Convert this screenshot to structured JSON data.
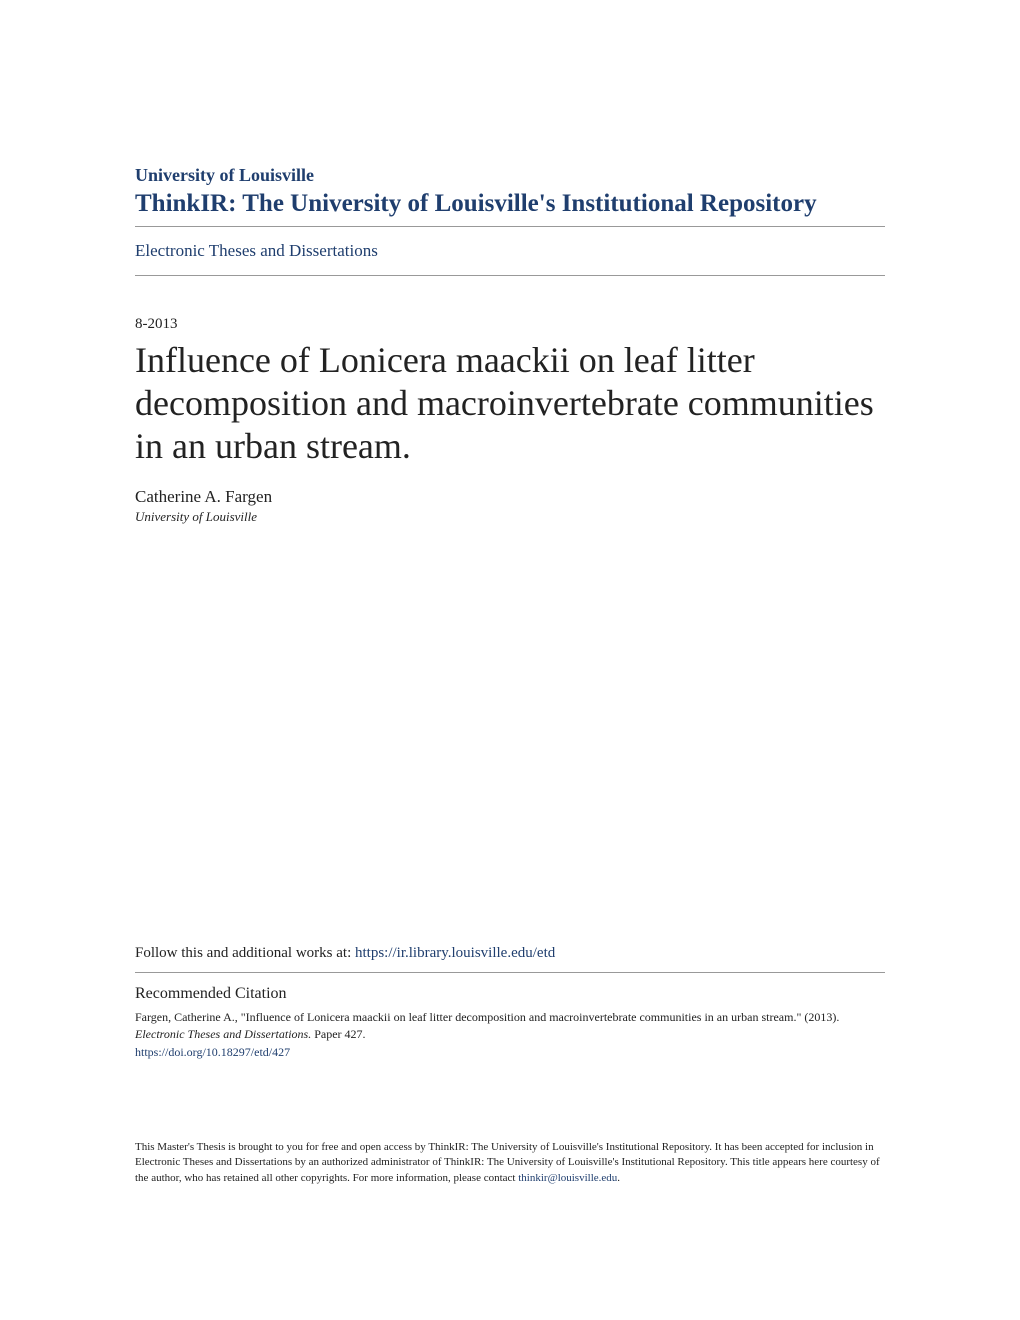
{
  "header": {
    "university": "University of Louisville",
    "repository": "ThinkIR: The University of Louisville's Institutional Repository",
    "collection": "Electronic Theses and Dissertations"
  },
  "metadata": {
    "date": "8-2013",
    "title": "Influence of Lonicera maackii on leaf litter decomposition and macroinvertebrate communities in an urban stream.",
    "author_name": "Catherine A. Fargen",
    "author_affiliation": "University of Louisville"
  },
  "follow": {
    "text": "Follow this and additional works at: ",
    "link": "https://ir.library.louisville.edu/etd"
  },
  "citation": {
    "heading": "Recommended Citation",
    "line1": "Fargen, Catherine A., \"Influence of Lonicera maackii on leaf litter decomposition and macroinvertebrate communities in an urban stream.\" (2013). ",
    "series_italic": "Electronic Theses and Dissertations.",
    "paper": " Paper 427.",
    "doi": "https://doi.org/10.18297/etd/427"
  },
  "footer": {
    "text": "This Master's Thesis is brought to you for free and open access by ThinkIR: The University of Louisville's Institutional Repository. It has been accepted for inclusion in Electronic Theses and Dissertations by an authorized administrator of ThinkIR: The University of Louisville's Institutional Repository. This title appears here courtesy of the author, who has retained all other copyrights. For more information, please contact ",
    "email": "thinkir@louisville.edu",
    "period": "."
  },
  "colors": {
    "link_color": "#1f3e6e",
    "text_color": "#222222",
    "divider_color": "#999999",
    "background": "#ffffff"
  }
}
